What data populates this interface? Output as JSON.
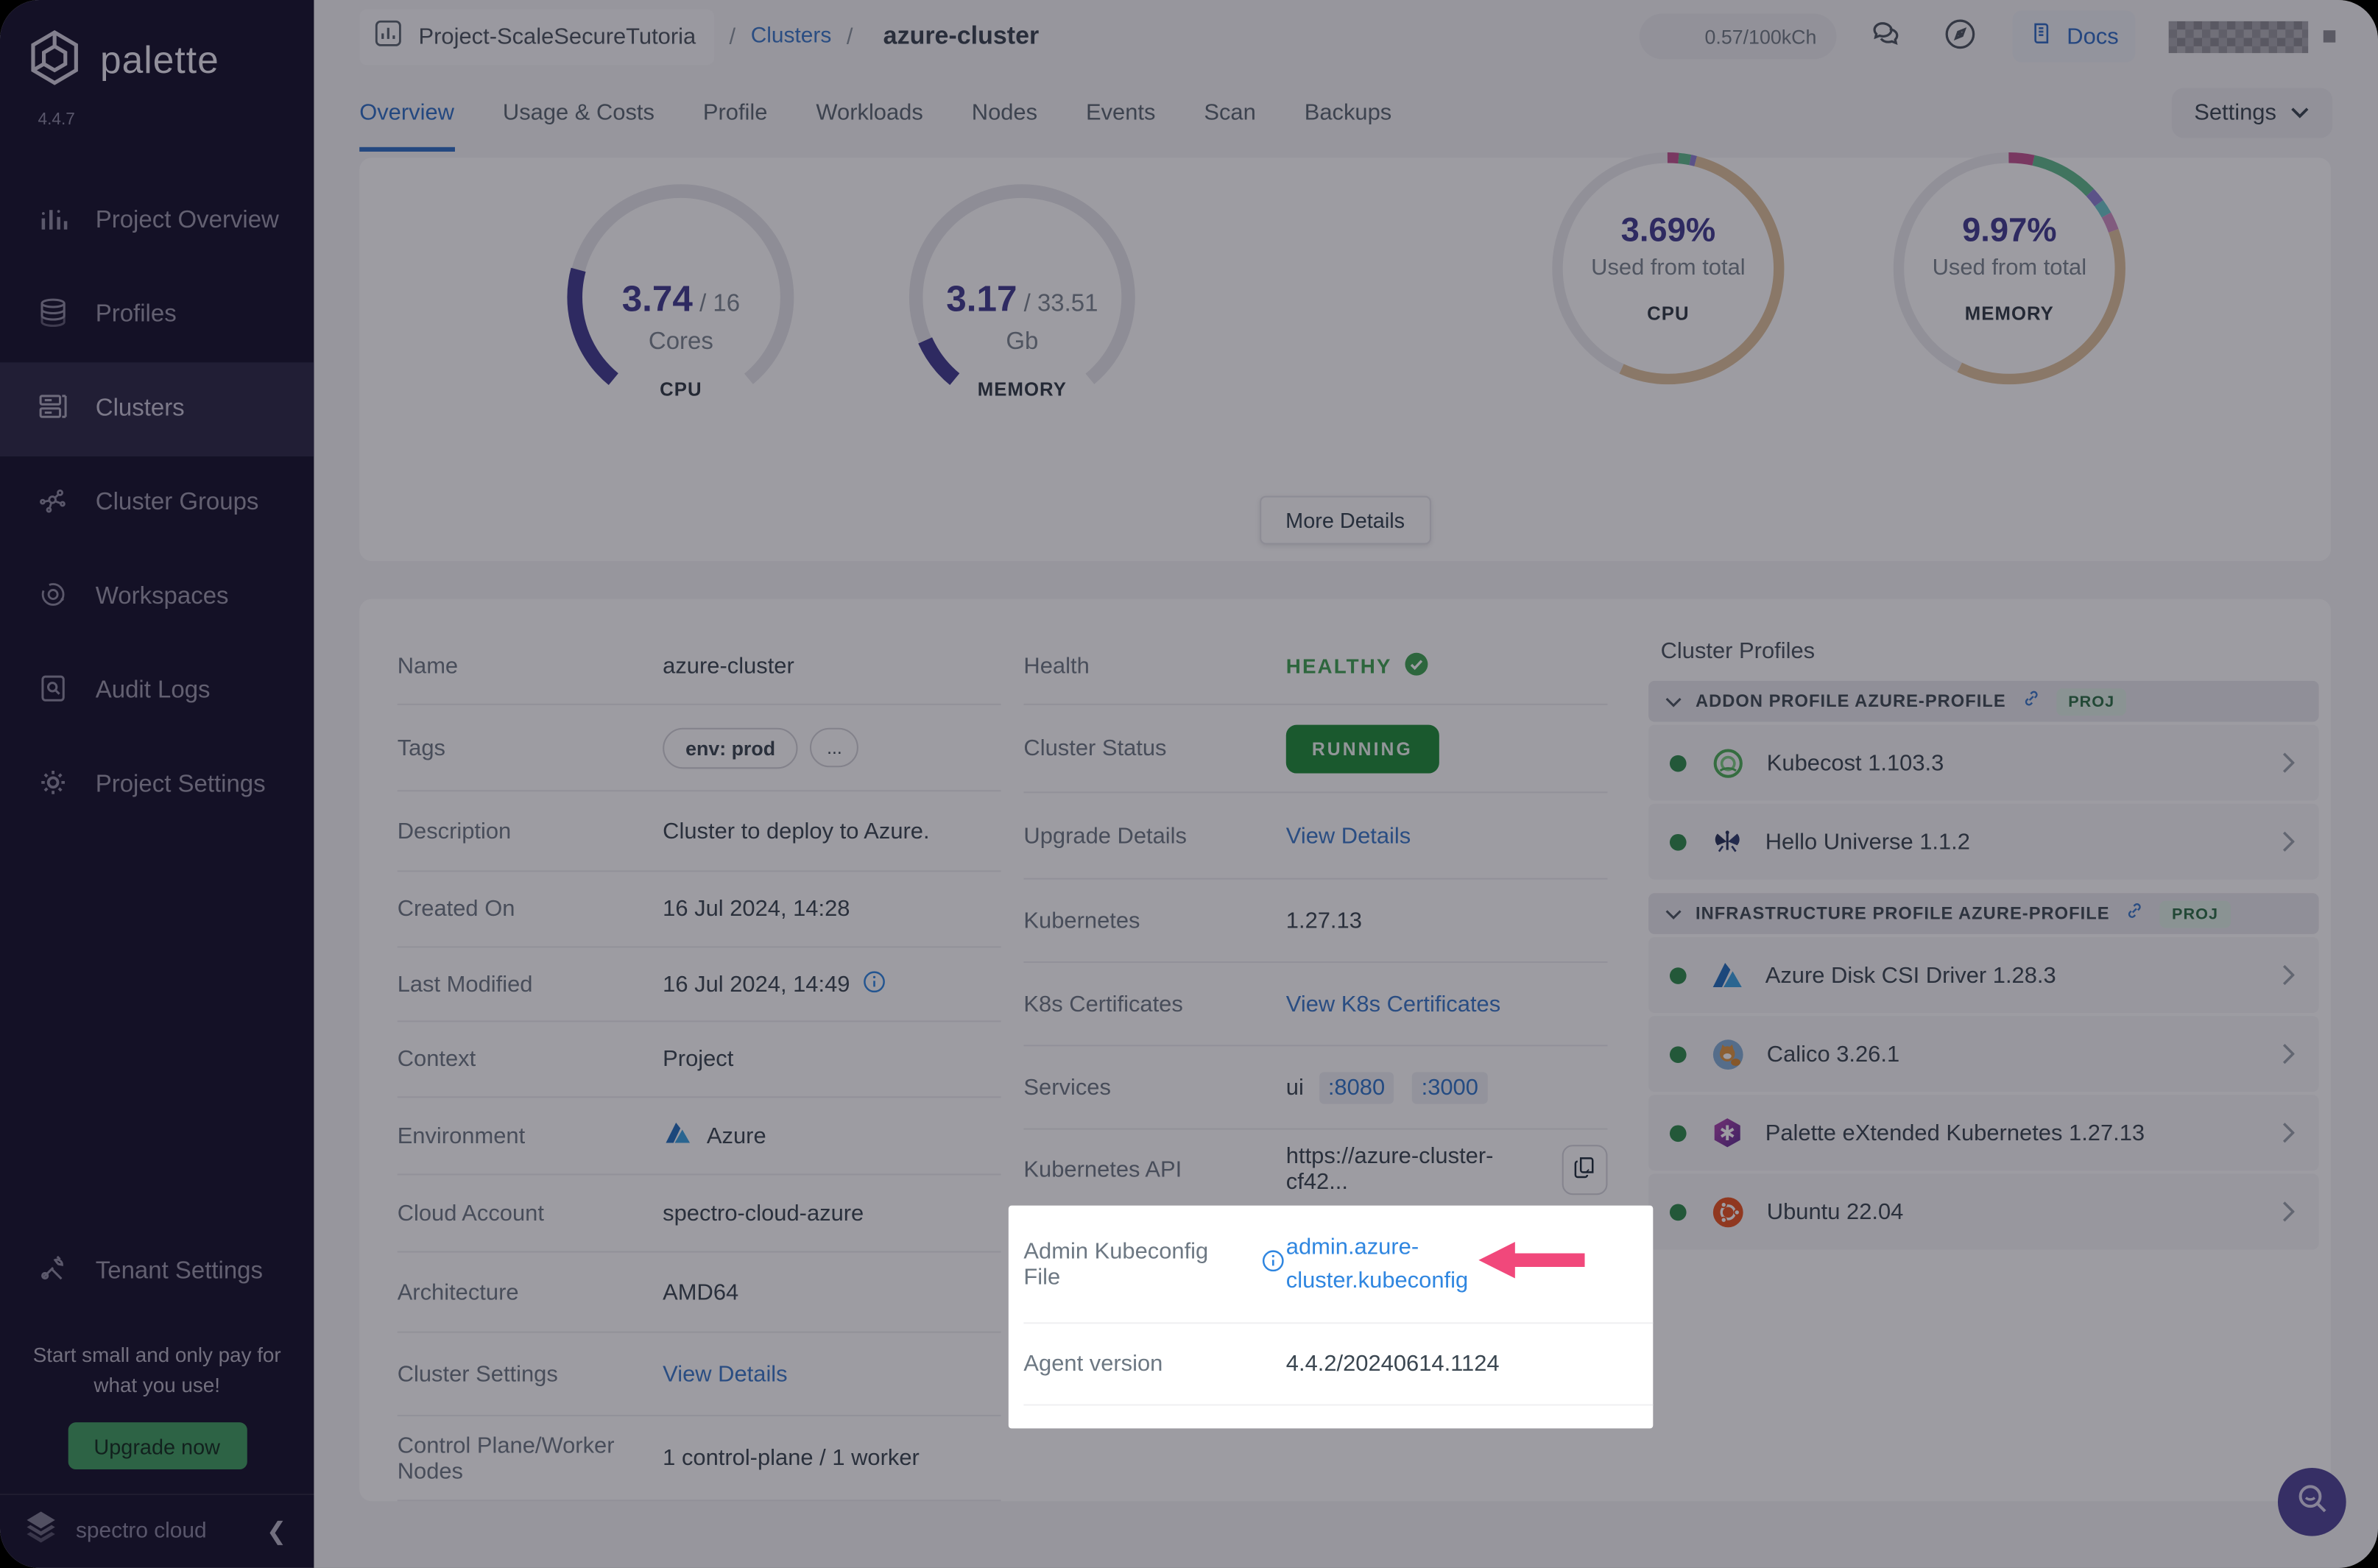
{
  "brand": {
    "name": "palette",
    "version": "4.4.7",
    "footer": "spectro cloud"
  },
  "sidebar": {
    "items": [
      {
        "label": "Project Overview"
      },
      {
        "label": "Profiles"
      },
      {
        "label": "Clusters"
      },
      {
        "label": "Cluster Groups"
      },
      {
        "label": "Workspaces"
      },
      {
        "label": "Audit Logs"
      },
      {
        "label": "Project Settings"
      }
    ],
    "tenant": {
      "label": "Tenant Settings"
    },
    "promo": {
      "text": "Start small and only pay for what you use!",
      "cta": "Upgrade now"
    }
  },
  "header": {
    "project": "Project-ScaleSecureTutoria",
    "sep": "/",
    "crumb_clusters": "Clusters",
    "crumb_cluster": "azure-cluster",
    "usage": "0.57/100kCh",
    "docs": "Docs"
  },
  "tabs": {
    "items": [
      {
        "label": "Overview"
      },
      {
        "label": "Usage & Costs"
      },
      {
        "label": "Profile"
      },
      {
        "label": "Workloads"
      },
      {
        "label": "Nodes"
      },
      {
        "label": "Events"
      },
      {
        "label": "Scan"
      },
      {
        "label": "Backups"
      }
    ],
    "settings": "Settings"
  },
  "overview": {
    "more_details": "More Details"
  },
  "chart_data": [
    {
      "type": "gauge",
      "label": "CPU",
      "value": 3.74,
      "max": 16,
      "value_display": "3.74",
      "max_display": "/ 16",
      "unit": "Cores",
      "color": "#413b8f",
      "track": "#e6e6ea"
    },
    {
      "type": "gauge",
      "label": "MEMORY",
      "value": 3.17,
      "max": 33.51,
      "value_display": "3.17",
      "max_display": "/ 33.51",
      "unit": "Gb",
      "color": "#413b8f",
      "track": "#e6e6ea"
    },
    {
      "type": "donut",
      "label": "CPU",
      "center_value": "3.69%",
      "caption": "Used from total",
      "segments": [
        {
          "name": "used-a",
          "color": "#c2538f",
          "pct": 1.5
        },
        {
          "name": "used-b",
          "color": "#5fba8c",
          "pct": 1.7
        },
        {
          "name": "used-c",
          "color": "#8d80d2",
          "pct": 0.8
        },
        {
          "name": "allocated",
          "color": "#dfc29b",
          "pct": 53
        },
        {
          "name": "free",
          "color": "#ebebee",
          "pct": 43
        }
      ]
    },
    {
      "type": "donut",
      "label": "MEMORY",
      "center_value": "9.97%",
      "caption": "Used from total",
      "segments": [
        {
          "name": "used-a",
          "color": "#c2538f",
          "pct": 3.5
        },
        {
          "name": "used-b",
          "color": "#5fba8c",
          "pct": 9.5
        },
        {
          "name": "used-c",
          "color": "#8d80d2",
          "pct": 2
        },
        {
          "name": "used-d",
          "color": "#6cc7c9",
          "pct": 2
        },
        {
          "name": "used-e",
          "color": "#cf8fc1",
          "pct": 2.5
        },
        {
          "name": "allocated",
          "color": "#dfc29b",
          "pct": 38
        },
        {
          "name": "free",
          "color": "#ebebee",
          "pct": 42.5
        }
      ]
    }
  ],
  "details": {
    "name": {
      "label": "Name",
      "value": "azure-cluster"
    },
    "tags": {
      "label": "Tags",
      "tag": "env: prod",
      "more": "..."
    },
    "description": {
      "label": "Description",
      "value": "Cluster to deploy to Azure."
    },
    "created": {
      "label": "Created On",
      "value": "16 Jul 2024, 14:28"
    },
    "modified": {
      "label": "Last Modified",
      "value": "16 Jul 2024, 14:49"
    },
    "context": {
      "label": "Context",
      "value": "Project"
    },
    "environment": {
      "label": "Environment",
      "value": "Azure"
    },
    "cloud_account": {
      "label": "Cloud Account",
      "value": "spectro-cloud-azure"
    },
    "architecture": {
      "label": "Architecture",
      "value": "AMD64"
    },
    "cluster_settings": {
      "label": "Cluster Settings",
      "link": "View Details"
    },
    "nodes": {
      "label": "Control Plane/Worker Nodes",
      "value": "1 control-plane / 1 worker"
    }
  },
  "status": {
    "health": {
      "label": "Health",
      "value": "HEALTHY"
    },
    "cluster_status": {
      "label": "Cluster Status",
      "value": "RUNNING"
    },
    "upgrade": {
      "label": "Upgrade Details",
      "link": "View Details"
    },
    "kubernetes": {
      "label": "Kubernetes",
      "value": "1.27.13"
    },
    "certs": {
      "label": "K8s Certificates",
      "link": "View K8s Certificates"
    },
    "services": {
      "label": "Services",
      "name": "ui",
      "port1": ":8080",
      "port2": ":3000"
    },
    "api": {
      "label": "Kubernetes API",
      "value": "https://azure-cluster-cf42..."
    },
    "kubeconfig": {
      "label": "Admin Kubeconfig File",
      "link": "admin.azure-cluster.kubeconfig"
    },
    "agent": {
      "label": "Agent version",
      "value": "4.4.2/20240614.1124"
    }
  },
  "profiles": {
    "heading": "Cluster Profiles",
    "groups": [
      {
        "title": "ADDON PROFILE AZURE-PROFILE",
        "badge": "PROJ",
        "items": [
          {
            "name": "Kubecost 1.103.3",
            "icon": "kubecost-icon"
          },
          {
            "name": "Hello Universe 1.1.2",
            "icon": "hello-universe-icon"
          }
        ]
      },
      {
        "title": "INFRASTRUCTURE PROFILE AZURE-PROFILE",
        "badge": "PROJ",
        "items": [
          {
            "name": "Azure Disk CSI Driver 1.28.3",
            "icon": "azure-disk-icon"
          },
          {
            "name": "Calico 3.26.1",
            "icon": "calico-icon"
          },
          {
            "name": "Palette eXtended Kubernetes 1.27.13",
            "icon": "pxk-icon"
          },
          {
            "name": "Ubuntu 22.04",
            "icon": "ubuntu-icon"
          }
        ]
      }
    ]
  },
  "colors": {
    "accent_blue": "#2f6fc5",
    "link_blue": "#3a78c9",
    "healthy_green": "#3fa351",
    "running_green": "#1e8c37",
    "upgrade_green": "#3f9e5f",
    "gauge_indigo": "#413b8f",
    "arrow_pink": "#f1487b",
    "sidebar_bg": "#14112a",
    "fab_purple": "#4f4497"
  }
}
